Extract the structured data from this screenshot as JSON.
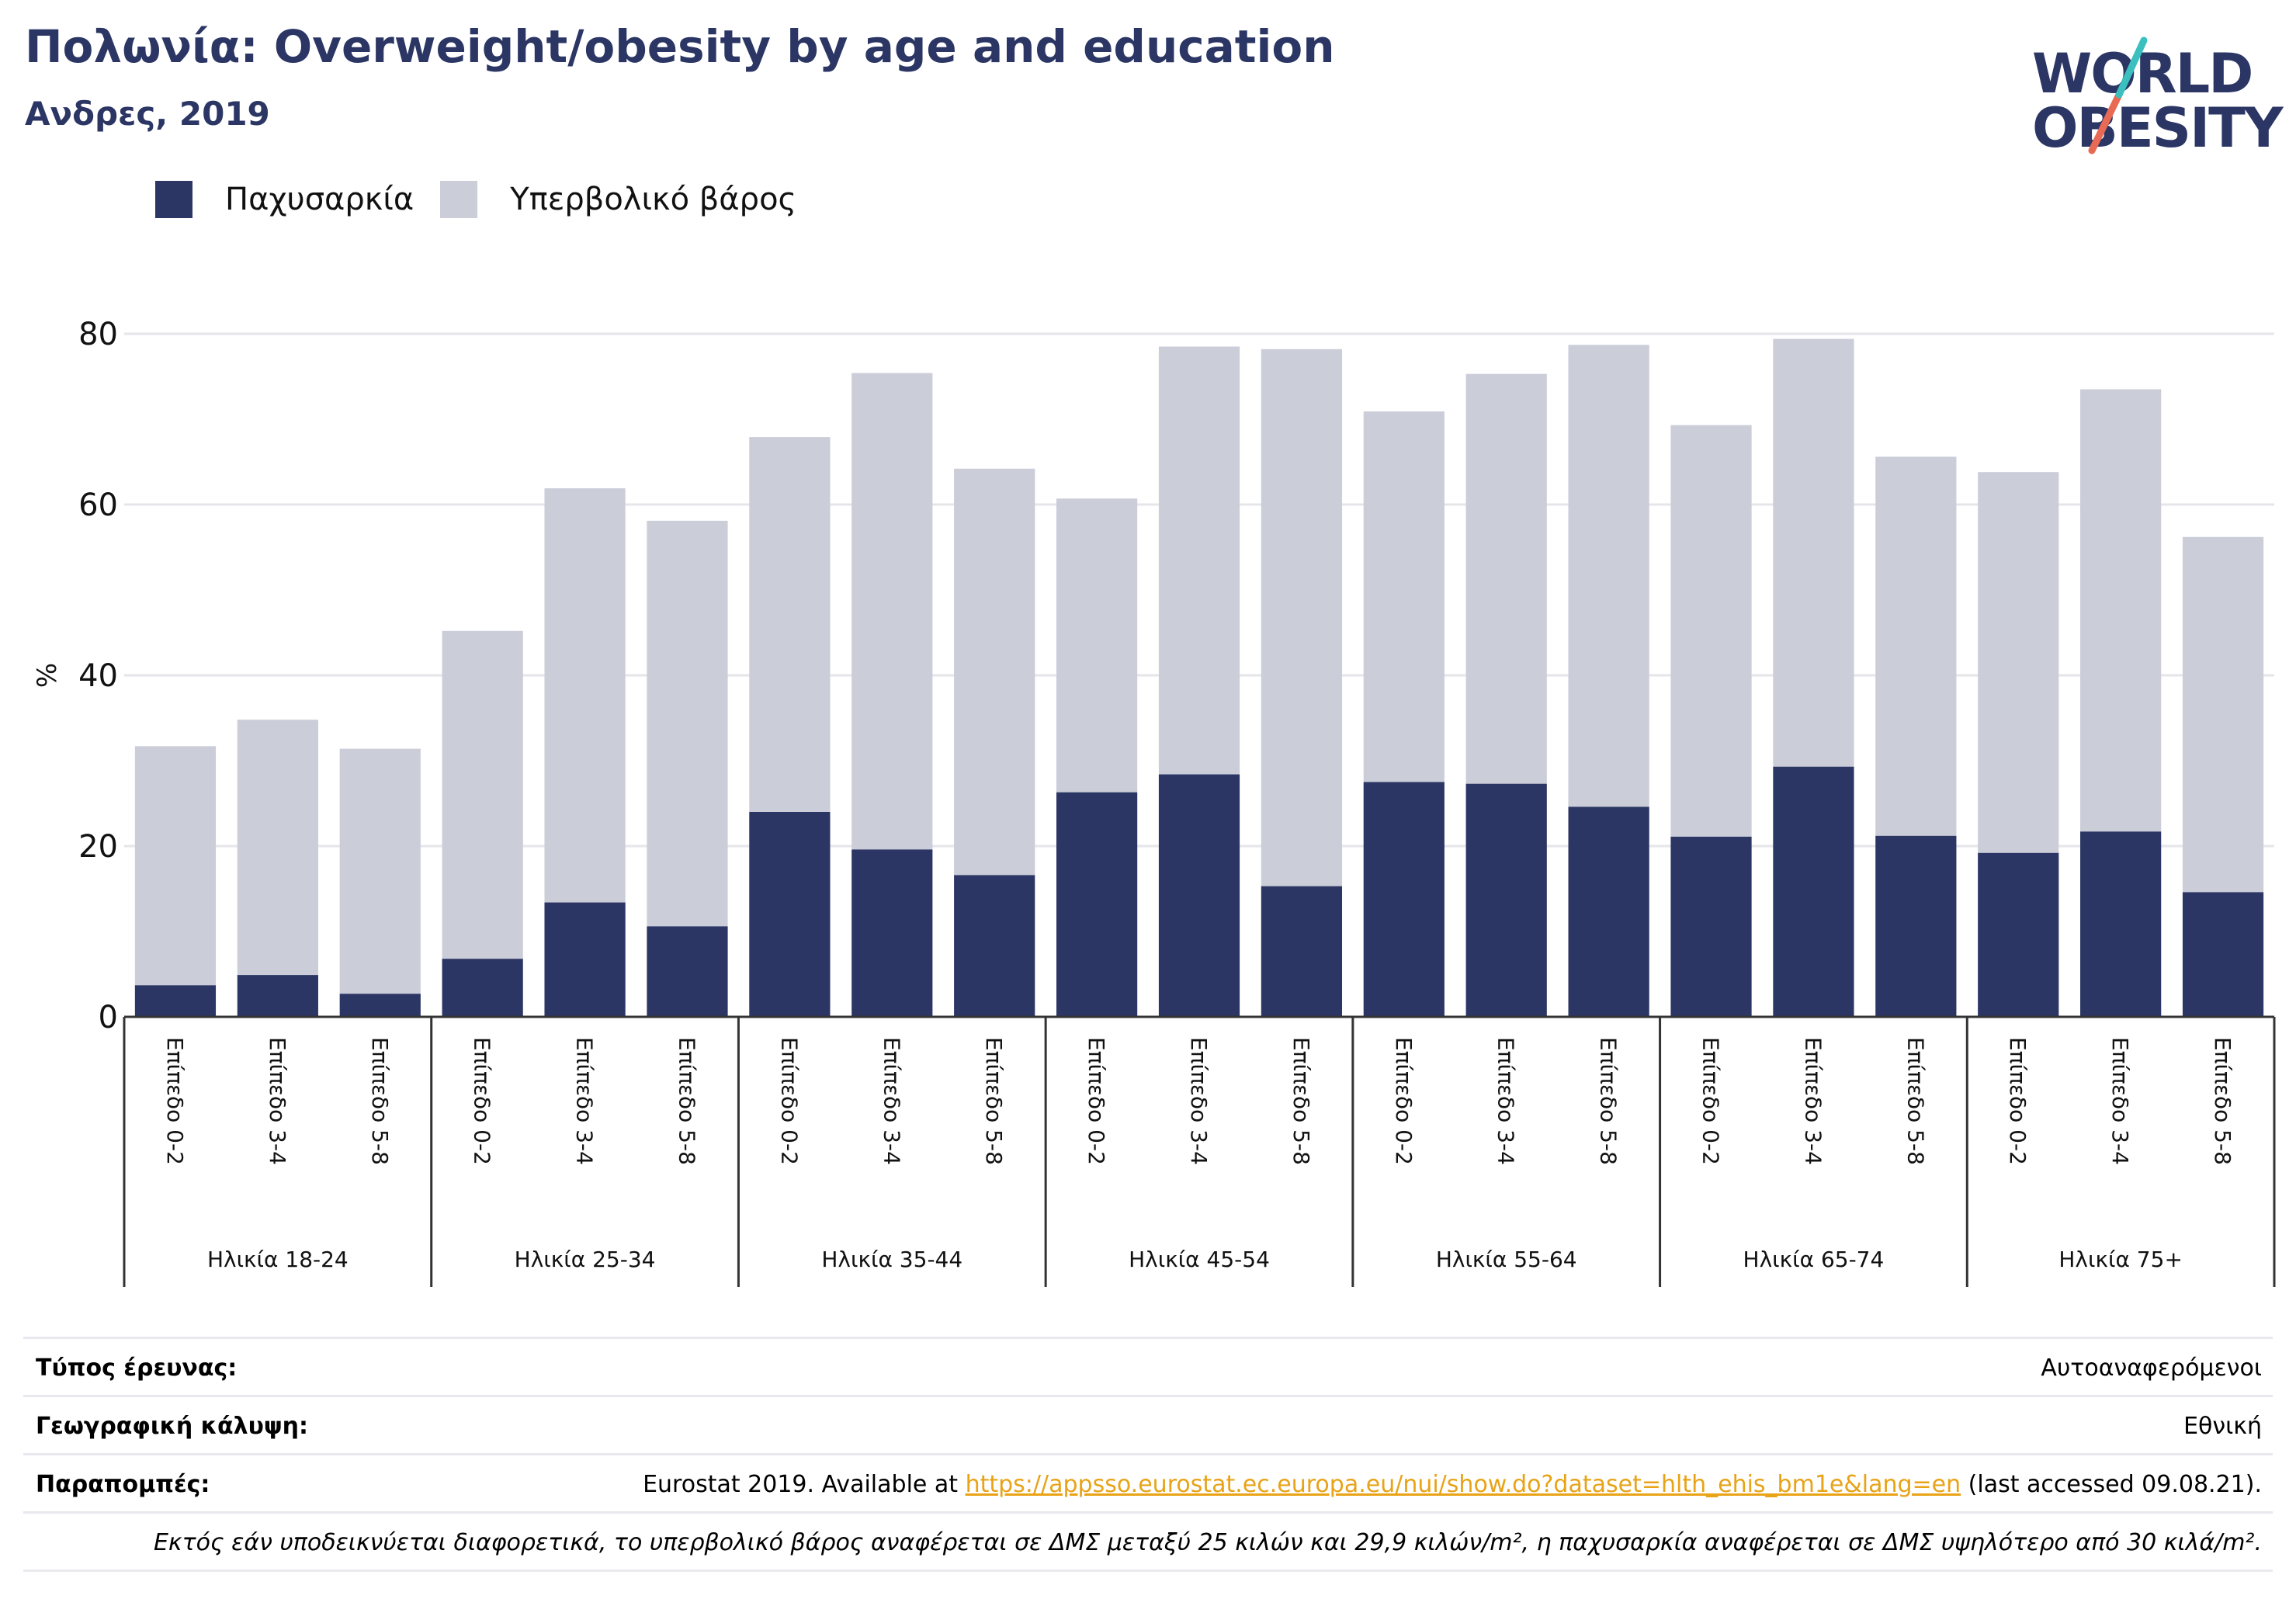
{
  "header": {
    "title": "Πολωνία: Overweight/obesity by age and education",
    "subtitle": "Ανδρες, 2019"
  },
  "logo": {
    "line1": "WORLD",
    "line2": "OBESITY"
  },
  "colors": {
    "obesity": "#2b3664",
    "overweight": "#cbcdd9",
    "title": "#2b3664",
    "link": "#e8a317",
    "logo_teal": "#3bbfbf",
    "logo_coral": "#e86a55"
  },
  "legend": {
    "obesity_label": "Παχυσαρκία",
    "overweight_label": "Υπερβολικό βάρος"
  },
  "chart_data": {
    "type": "bar",
    "stacked": true,
    "ylabel": "%",
    "ylim": [
      0,
      80
    ],
    "yticks": [
      0,
      20,
      40,
      60,
      80
    ],
    "grid": true,
    "legend_position": "top-left",
    "groups": [
      {
        "label": "Ηλικία 18-24",
        "categories": [
          "Επίπεδο 0-2",
          "Επίπεδο 3-4",
          "Επίπεδο 5-8"
        ],
        "obesity": [
          3.7,
          4.9,
          2.7
        ],
        "total": [
          31.7,
          34.8,
          31.4
        ]
      },
      {
        "label": "Ηλικία 25-34",
        "categories": [
          "Επίπεδο 0-2",
          "Επίπεδο 3-4",
          "Επίπεδο 5-8"
        ],
        "obesity": [
          6.8,
          13.4,
          10.6
        ],
        "total": [
          45.2,
          61.9,
          58.1
        ]
      },
      {
        "label": "Ηλικία 35-44",
        "categories": [
          "Επίπεδο 0-2",
          "Επίπεδο 3-4",
          "Επίπεδο 5-8"
        ],
        "obesity": [
          24.0,
          19.6,
          16.6
        ],
        "total": [
          67.9,
          75.4,
          64.2
        ]
      },
      {
        "label": "Ηλικία 45-54",
        "categories": [
          "Επίπεδο 0-2",
          "Επίπεδο 3-4",
          "Επίπεδο 5-8"
        ],
        "obesity": [
          26.3,
          28.4,
          15.3
        ],
        "total": [
          60.7,
          78.5,
          78.2
        ]
      },
      {
        "label": "Ηλικία 55-64",
        "categories": [
          "Επίπεδο 0-2",
          "Επίπεδο 3-4",
          "Επίπεδο 5-8"
        ],
        "obesity": [
          27.5,
          27.3,
          24.6
        ],
        "total": [
          70.9,
          75.3,
          78.7
        ]
      },
      {
        "label": "Ηλικία 65-74",
        "categories": [
          "Επίπεδο 0-2",
          "Επίπεδο 3-4",
          "Επίπεδο 5-8"
        ],
        "obesity": [
          21.1,
          29.3,
          21.2
        ],
        "total": [
          69.3,
          79.4,
          65.6
        ]
      },
      {
        "label": "Ηλικία 75+",
        "categories": [
          "Επίπεδο 0-2",
          "Επίπεδο 3-4",
          "Επίπεδο 5-8"
        ],
        "obesity": [
          19.2,
          21.7,
          14.6
        ],
        "total": [
          63.8,
          73.5,
          56.2
        ]
      }
    ],
    "series": [
      {
        "name": "Παχυσαρκία",
        "role": "obesity"
      },
      {
        "name": "Υπερβολικό βάρος",
        "role": "overweight"
      }
    ]
  },
  "info": {
    "survey_type_label": "Τύπος έρευνας:",
    "survey_type_value": "Αυτοαναφερόμενοι",
    "coverage_label": "Γεωγραφική κάλυψη:",
    "coverage_value": "Εθνική",
    "references_label": "Παραπομπές:",
    "references_prefix": "Eurostat 2019. Available at ",
    "references_link": "https://appsso.eurostat.ec.europa.eu/nui/show.do?dataset=hlth_ehis_bm1e&lang=en",
    "references_suffix": " (last accessed 09.08.21).",
    "note": "Εκτός εάν υποδεικνύεται διαφορετικά, το υπερβολικό βάρος αναφέρεται σε ΔΜΣ μεταξύ 25 κιλών και 29,9 κιλών/m², η παχυσαρκία αναφέρεται σε ΔΜΣ υψηλότερο από 30 κιλά/m²."
  }
}
